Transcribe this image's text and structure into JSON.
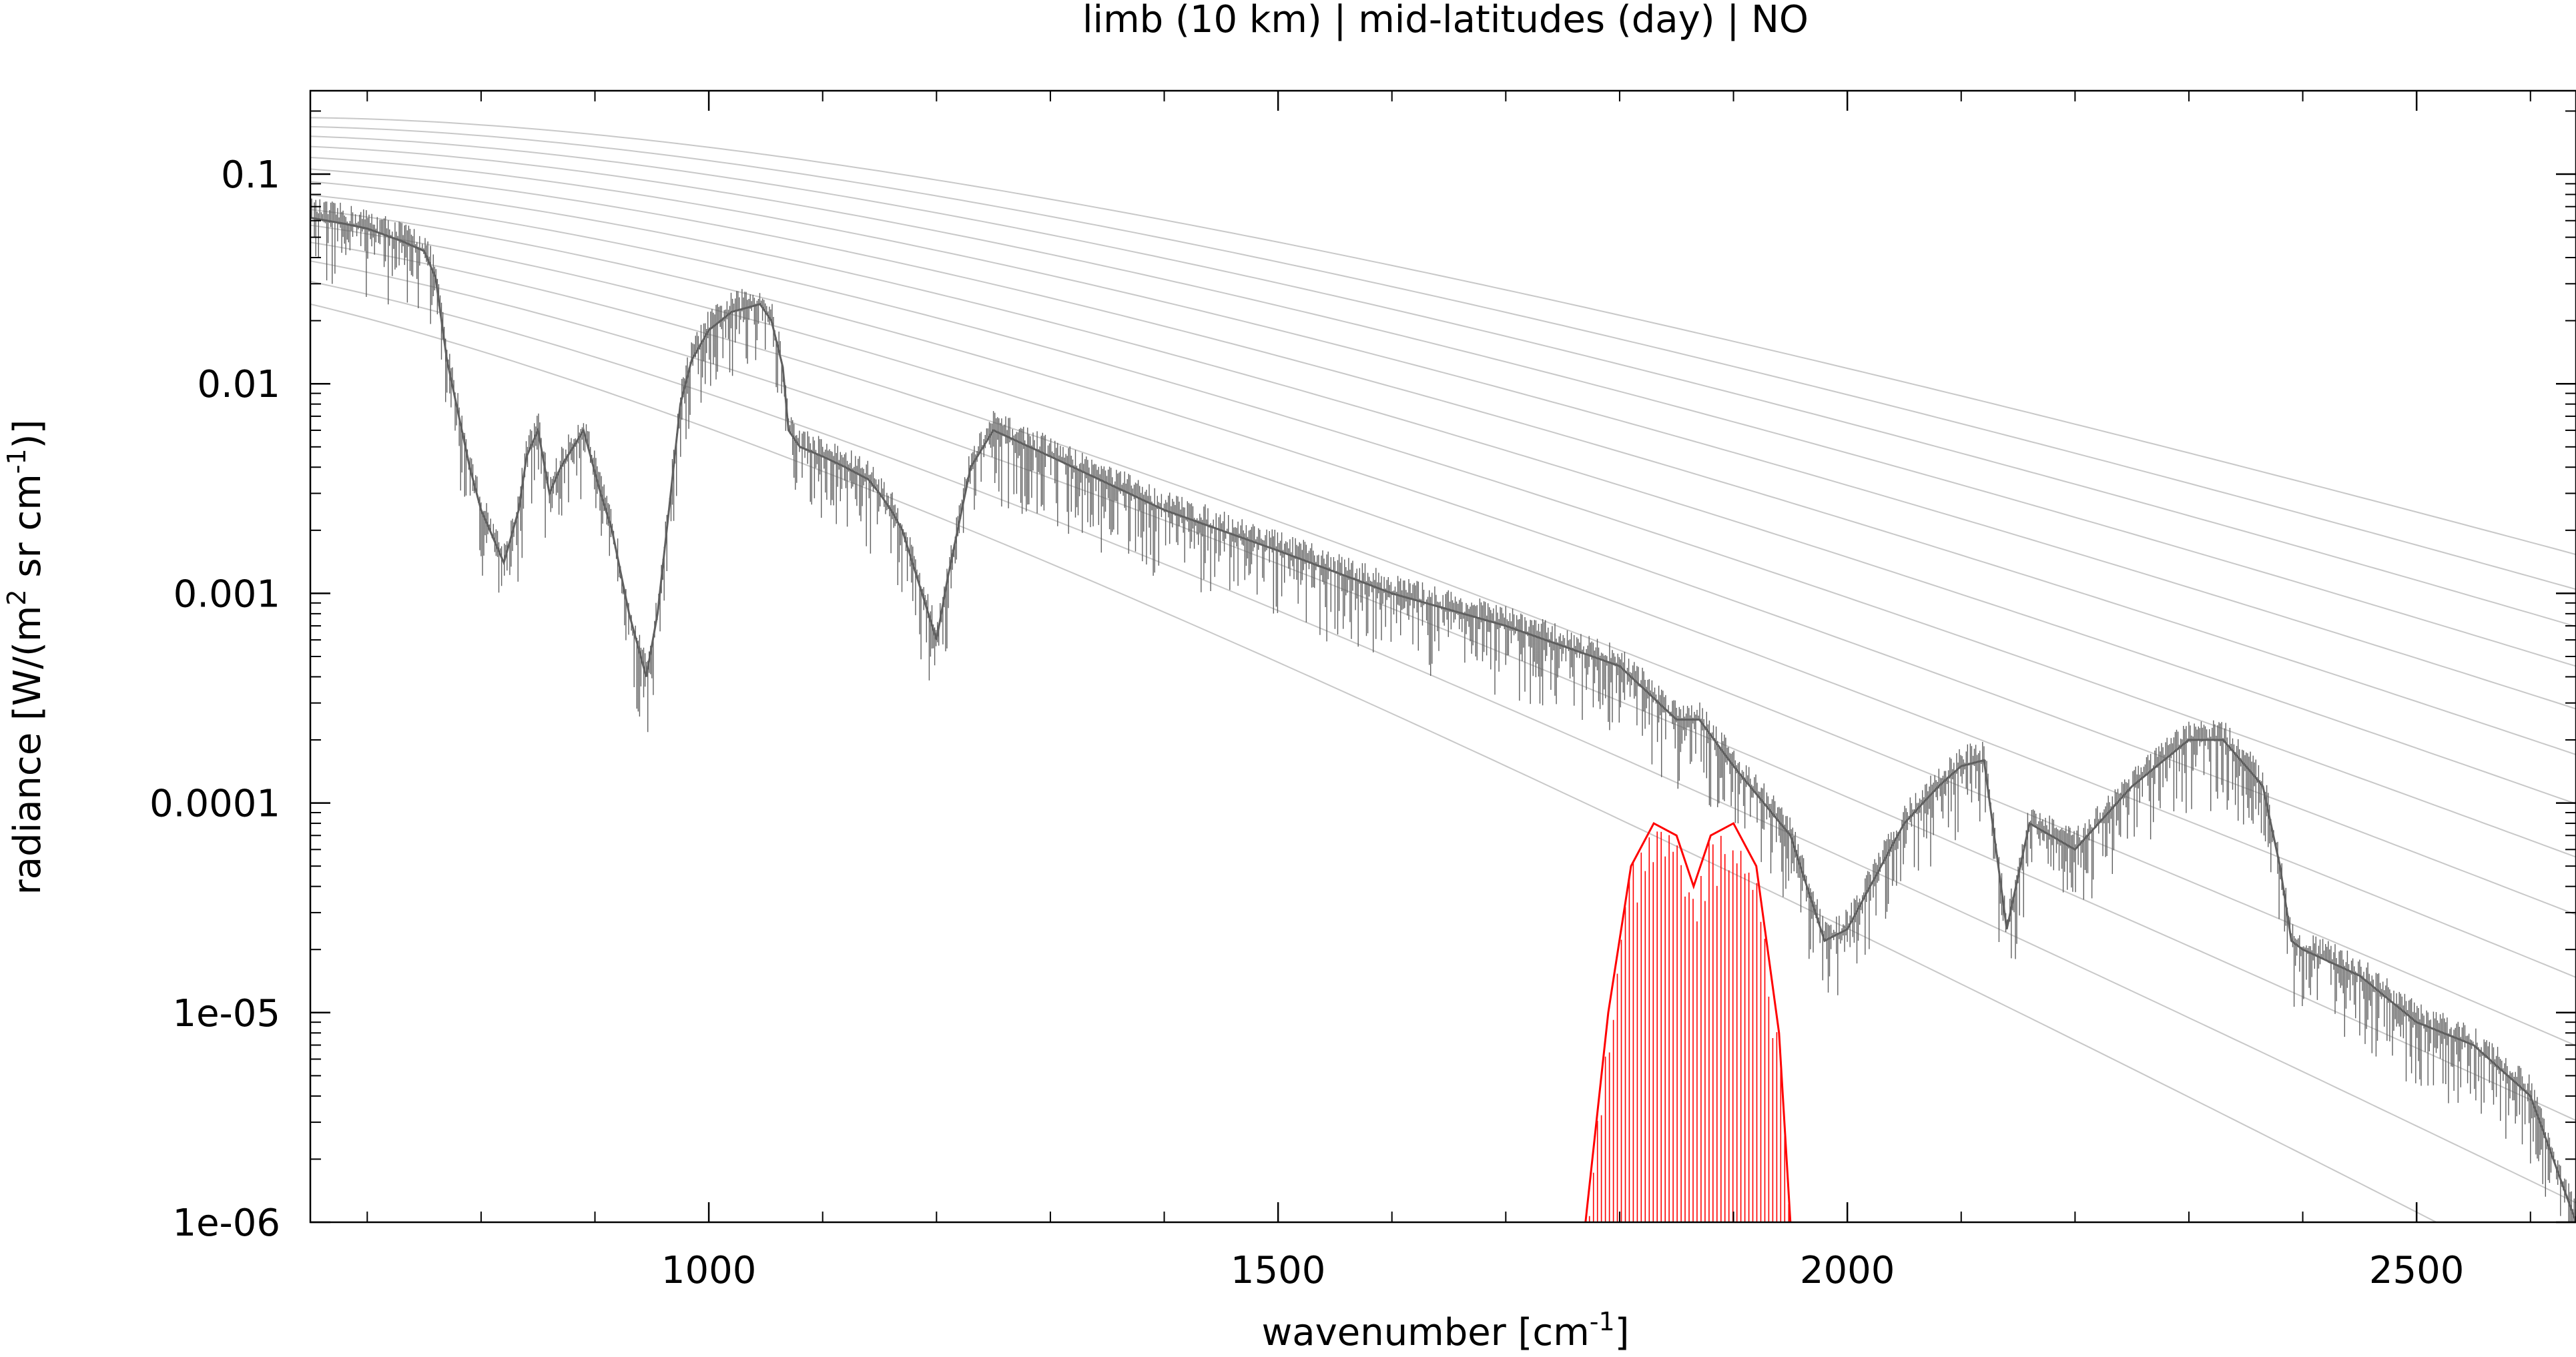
{
  "chart_data": {
    "type": "line",
    "title": "limb (10 km) | mid-latitudes (day) | NO",
    "xlabel": {
      "base": "wavenumber [cm",
      "sup": "-1",
      "tail": "]"
    },
    "ylabel": {
      "base": "radiance [W/(m",
      "sup1": "2",
      "mid": " sr cm",
      "sup2": "-1",
      "tail": ")]"
    },
    "xlim": [
      650,
      2640
    ],
    "ylim": [
      1e-06,
      0.25
    ],
    "yscale": "log",
    "grid": false,
    "x_ticks": [
      {
        "value": 1000,
        "label": "1000"
      },
      {
        "value": 1500,
        "label": "1500"
      },
      {
        "value": 2000,
        "label": "2000"
      },
      {
        "value": 2500,
        "label": "2500"
      }
    ],
    "y_ticks": [
      {
        "value": 0.1,
        "label": "0.1"
      },
      {
        "value": 0.01,
        "label": "0.01"
      },
      {
        "value": 0.001,
        "label": "0.001"
      },
      {
        "value": 0.0001,
        "label": "0.0001"
      },
      {
        "value": 1e-05,
        "label": "1e-05"
      },
      {
        "value": 1e-06,
        "label": "1e-06"
      }
    ],
    "colors": {
      "total": "#5f5f5f",
      "total_light": "#b4b4b4",
      "gas": "#ff0000",
      "planck": "#c8c8c8"
    },
    "planck_temperatures_K": [
      320,
      310,
      300,
      290,
      280,
      270,
      260,
      250,
      240,
      230,
      220,
      210,
      200,
      190
    ],
    "series": [
      {
        "key": "total",
        "x": [
          650,
          680,
          700,
          730,
          750,
          760,
          770,
          790,
          800,
          820,
          833,
          840,
          850,
          860,
          870,
          890,
          905,
          915,
          930,
          945,
          955,
          965,
          975,
          985,
          1000,
          1020,
          1045,
          1055,
          1065,
          1070,
          1080,
          1100,
          1120,
          1140,
          1150,
          1160,
          1170,
          1200,
          1210,
          1230,
          1250,
          1300,
          1400,
          1500,
          1580,
          1600,
          1700,
          1800,
          1850,
          1870,
          1900,
          1950,
          1980,
          2000,
          2020,
          2050,
          2080,
          2100,
          2120,
          2135,
          2140,
          2160,
          2200,
          2250,
          2300,
          2330,
          2350,
          2365,
          2380,
          2390,
          2400,
          2450,
          2500,
          2550,
          2600,
          2620,
          2640
        ],
        "y": [
          0.062,
          0.058,
          0.055,
          0.048,
          0.043,
          0.032,
          0.013,
          0.004,
          0.0025,
          0.0014,
          0.0025,
          0.0045,
          0.006,
          0.003,
          0.004,
          0.006,
          0.003,
          0.002,
          0.0008,
          0.0004,
          0.0008,
          0.0025,
          0.008,
          0.013,
          0.018,
          0.022,
          0.024,
          0.02,
          0.012,
          0.006,
          0.005,
          0.0045,
          0.004,
          0.0035,
          0.003,
          0.0025,
          0.002,
          0.0006,
          0.0012,
          0.004,
          0.006,
          0.0045,
          0.0025,
          0.0016,
          0.0011,
          0.001,
          0.0007,
          0.00045,
          0.00025,
          0.00025,
          0.00015,
          7e-05,
          2.2e-05,
          2.5e-05,
          4e-05,
          8e-05,
          0.00012,
          0.00015,
          0.00016,
          4e-05,
          2.5e-05,
          8e-05,
          6e-05,
          0.00012,
          0.0002,
          0.0002,
          0.00015,
          0.00012,
          5e-05,
          2.2e-05,
          2e-05,
          1.5e-05,
          9e-06,
          7e-06,
          4e-06,
          2e-06,
          1e-06
        ]
      },
      {
        "key": "gas",
        "x": [
          1770,
          1790,
          1810,
          1830,
          1850,
          1865,
          1880,
          1900,
          1920,
          1940,
          1950
        ],
        "y": [
          1e-06,
          1e-05,
          5e-05,
          8e-05,
          7e-05,
          4e-05,
          7e-05,
          8e-05,
          5e-05,
          8e-06,
          1e-06
        ]
      }
    ]
  }
}
